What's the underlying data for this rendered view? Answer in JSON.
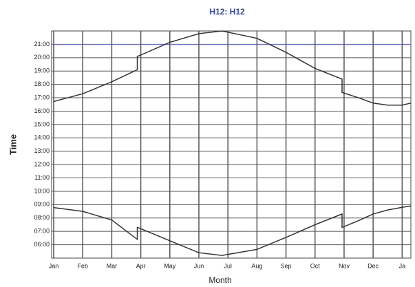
{
  "chart_data": {
    "type": "line",
    "title": "H12: H12",
    "xlabel": "Month",
    "ylabel": "Time",
    "x": [
      0,
      1,
      2,
      2.88,
      2.88,
      3,
      4,
      5,
      5.8,
      7,
      8,
      9,
      9.93,
      9.93,
      10.5,
      11,
      11.5,
      12,
      12.3
    ],
    "series": [
      {
        "color": "#333333",
        "values": [
          16.72,
          17.3,
          18.2,
          19.1,
          20.1,
          20.2,
          21.15,
          21.8,
          22.0,
          21.45,
          20.4,
          19.2,
          18.4,
          17.4,
          17.0,
          16.6,
          16.45,
          16.45,
          16.6
        ]
      },
      {
        "color": "#333333",
        "values": [
          8.78,
          8.5,
          7.85,
          6.4,
          7.3,
          7.2,
          6.3,
          5.4,
          5.2,
          5.65,
          6.55,
          7.5,
          8.3,
          7.3,
          7.8,
          8.3,
          8.6,
          8.8,
          8.9
        ]
      }
    ],
    "xlim": [
      0,
      12.3
    ],
    "ylim": [
      5,
      22
    ],
    "xticks": [
      {
        "value": 0,
        "label": "Jan"
      },
      {
        "value": 1,
        "label": "Feb"
      },
      {
        "value": 2,
        "label": "Mar"
      },
      {
        "value": 3,
        "label": "Apr"
      },
      {
        "value": 4,
        "label": "May"
      },
      {
        "value": 5,
        "label": "Jun"
      },
      {
        "value": 6,
        "label": "Jul"
      },
      {
        "value": 7,
        "label": "Aug"
      },
      {
        "value": 8,
        "label": "Sep"
      },
      {
        "value": 9,
        "label": "Oct"
      },
      {
        "value": 10,
        "label": "Nov"
      },
      {
        "value": 11,
        "label": "Dec"
      },
      {
        "value": 12,
        "label": "Ja"
      }
    ],
    "yticks": [
      {
        "value": 6,
        "label": "06:00"
      },
      {
        "value": 7,
        "label": "07:00"
      },
      {
        "value": 8,
        "label": "08:00"
      },
      {
        "value": 9,
        "label": "09:00"
      },
      {
        "value": 10,
        "label": "10:00"
      },
      {
        "value": 11,
        "label": "11:00"
      },
      {
        "value": 12,
        "label": "12:00"
      },
      {
        "value": 13,
        "label": "13:00"
      },
      {
        "value": 14,
        "label": "14:00"
      },
      {
        "value": 15,
        "label": "15:00"
      },
      {
        "value": 16,
        "label": "16:00"
      },
      {
        "value": 17,
        "label": "17:00"
      },
      {
        "value": 18,
        "label": "18:00"
      },
      {
        "value": 19,
        "label": "19:00"
      },
      {
        "value": 20,
        "label": "20:00"
      },
      {
        "value": 21,
        "label": "21:00"
      }
    ],
    "grid": true,
    "grid_color": "#555555",
    "highlight_color": "#5555cc",
    "title_color": "#3344bb"
  }
}
